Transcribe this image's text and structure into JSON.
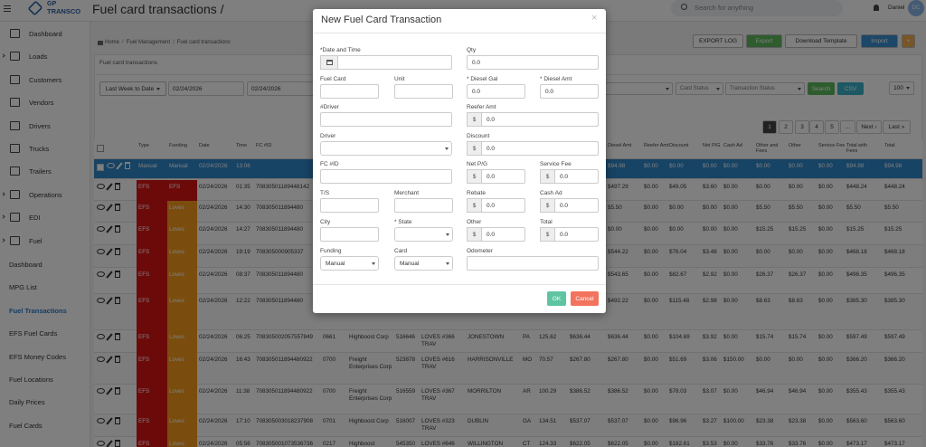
{
  "header": {
    "logo_top": "GP",
    "logo_bottom": "TRANSCO",
    "title": "Fuel card transactions /",
    "search_placeholder": "Search for anything",
    "user": "Daniel",
    "avatar": "DC"
  },
  "sidebar": {
    "items": [
      {
        "label": "Dashboard"
      },
      {
        "label": "Loads",
        "expandable": true
      },
      {
        "label": "Customers"
      },
      {
        "label": "Vendors"
      },
      {
        "label": "Drivers"
      },
      {
        "label": "Trucks"
      },
      {
        "label": "Trailers"
      },
      {
        "label": "Operations",
        "expandable": true
      },
      {
        "label": "EDI",
        "expandable": true
      },
      {
        "label": "Fuel",
        "expandable": true
      }
    ],
    "fuel_menu": [
      {
        "label": "Dashboard"
      },
      {
        "label": "MPG List"
      },
      {
        "label": "Fuel Transactions",
        "active": true
      },
      {
        "label": "EFS Fuel Cards"
      },
      {
        "label": "EFS Money Codes"
      },
      {
        "label": "Fuel Locations"
      },
      {
        "label": "Daily Prices"
      },
      {
        "label": "Fuel Cards"
      }
    ]
  },
  "breadcrumb": [
    "Home",
    "Fuel Management",
    "Fuel card transactions"
  ],
  "breadcrumb_separator": "/",
  "toolbar": [
    "EXPORT LOG",
    "Export",
    "Download Template",
    "Import",
    "+"
  ],
  "panel_title": "Fuel card transactions",
  "filters": {
    "range": "Last Week to Date",
    "from": "02/24/2026",
    "to": "02/24/2026",
    "funding": "Funding",
    "card_status": "Card Status",
    "transaction_status": "Transaction Status",
    "search": "Search",
    "csv": "CSV",
    "page_size": "100"
  },
  "pagination": [
    "1",
    "2",
    "3",
    "4",
    "5",
    "...",
    "Next ›",
    "Last »"
  ],
  "table": {
    "tag_colors": {
      "EFS": "#d81414",
      "Loves": "#f59a1c"
    },
    "headers": [
      "Type",
      "Funding",
      "Date",
      "Time",
      "FC #ID",
      null,
      null,
      null,
      null,
      null,
      null,
      null,
      null,
      "Diesel Amt",
      "Reefer Amt",
      "Discount",
      "Net P/G",
      "Cash Ad",
      "Other and Fees",
      "Other",
      "Service Fee",
      "Total with Fees",
      "Total"
    ],
    "rows": [
      [
        "Manual",
        "Manual",
        "02/24/2026",
        "13:06",
        null,
        null,
        null,
        null,
        null,
        null,
        null,
        null,
        null,
        "$94.98",
        "$0.00",
        "$0.00",
        "$0.00",
        "$0.00",
        "$0.00",
        "$0.00",
        "$0.00",
        "$94.98",
        "$94.98"
      ],
      [
        "EFS",
        "EFS",
        "02/24/2026",
        "01:35",
        "70830501189448142",
        null,
        null,
        null,
        null,
        null,
        null,
        null,
        null,
        "$497.29",
        "$0.00",
        "$49.05",
        "$3.60",
        "$0.00",
        "$0.00",
        "$0.00",
        "$0.00",
        "$448.24",
        "$448.24"
      ],
      [
        "EFS",
        "Loves",
        "02/24/2026",
        "14:30",
        "708305011894480",
        null,
        null,
        null,
        null,
        null,
        null,
        null,
        null,
        "$5.50",
        "$0.00",
        "$0.00",
        "$0.00",
        "$0.00",
        "$5.50",
        "$5.50",
        "$0.00",
        "$5.50",
        "$5.50"
      ],
      [
        "EFS",
        "Loves",
        "02/24/2026",
        "14:27",
        "708305011894480",
        null,
        null,
        null,
        null,
        null,
        null,
        null,
        null,
        "$0.00",
        "$0.00",
        "$0.00",
        "$0.00",
        "$0.00",
        "$15.25",
        "$15.25",
        "$0.00",
        "$15.25",
        "$15.25"
      ],
      [
        "EFS",
        "Loves",
        "02/24/2026",
        "19:19",
        "708305000905337",
        null,
        null,
        null,
        null,
        null,
        null,
        null,
        null,
        "$544.22",
        "$0.00",
        "$76.04",
        "$3.48",
        "$0.00",
        "$0.00",
        "$0.00",
        "$0.00",
        "$468.18",
        "$468.18"
      ],
      [
        "EFS",
        "Loves",
        "02/24/2026",
        "08:37",
        "708305011894480",
        null,
        null,
        null,
        null,
        null,
        null,
        null,
        null,
        "$543.65",
        "$0.00",
        "$82.67",
        "$2.92",
        "$0.00",
        "$26.37",
        "$26.37",
        "$0.00",
        "$496.35",
        "$496.35"
      ],
      [
        "EFS",
        "Loves",
        "02/24/2026",
        "12:22",
        "708305011894480",
        null,
        "Enterprises Corp",
        null,
        "TRAV",
        null,
        null,
        null,
        null,
        "$492.22",
        "$0.00",
        "$115.48",
        "$2.98",
        "$0.00",
        "$8.63",
        "$8.63",
        "$0.00",
        "$385.30",
        "$385.30"
      ],
      [
        "EFS",
        "Loves",
        "02/24/2026",
        "06:25",
        "708305002057557849",
        "0661",
        "Highboost Corp",
        "516646",
        "LOVES #366 TRAV",
        "JONESTOWN",
        "PA",
        "125.62",
        "$636.44",
        "$636.44",
        "$0.00",
        "$104.69",
        "$3.92",
        "$0.00",
        "$15.74",
        "$15.74",
        "$0.00",
        "$597.49",
        "$597.49"
      ],
      [
        "EFS",
        "Loves",
        "02/24/2026",
        "16:43",
        "708305011894480922",
        "0700",
        "Freight Enterprises Corp",
        "523878",
        "LOVES #616 TRAV",
        "HARRISONVILLE",
        "MO",
        "70.57",
        "$267.80",
        "$267.80",
        "$0.00",
        "$51.69",
        "$3.06",
        "$150.00",
        "$0.00",
        "$0.00",
        "$0.00",
        "$366.20",
        "$366.20"
      ],
      [
        "EFS",
        "Loves",
        "02/24/2026",
        "11:38",
        "708305011894480922",
        "0700",
        "Freight Enterprises Corp",
        "516559",
        "LOVES #367 TRAV",
        "MORRILTON",
        "AR",
        "100.29",
        "$386.52",
        "$386.52",
        "$0.00",
        "$78.03",
        "$3.07",
        "$0.00",
        "$46.94",
        "$46.94",
        "$0.00",
        "$355.43",
        "$355.43"
      ],
      [
        "EFS",
        "Loves",
        "02/24/2026",
        "17:10",
        "708305003018237908",
        "0701",
        "Highboost Corp",
        "516007",
        "LOVES #323 TRAV",
        "DUBLIN",
        "GA",
        "134.51",
        "$537.07",
        "$537.07",
        "$0.00",
        "$96.96",
        "$3.27",
        "$100.00",
        "$23.38",
        "$23.38",
        "$0.00",
        "$563.60",
        "$563.60"
      ],
      [
        "EFS",
        "Loves",
        "02/24/2026",
        "05:56",
        "708305001073536736",
        "0217",
        "Highboost",
        "545350",
        "LOVES #646",
        "WILLINGTON",
        "CT",
        "124.33",
        "$622.05",
        "$622.05",
        "$0.00",
        "$182.61",
        "$3.53",
        "$0.00",
        "$33.76",
        "$33.76",
        "$0.00",
        "$473.17",
        "$473.17"
      ]
    ]
  },
  "modal": {
    "title": "New Fuel Card Transaction",
    "close": "×",
    "ok": "OK",
    "cancel": "Cancel",
    "fields": [
      {
        "label": "*Date and Time",
        "kind": "date"
      },
      {
        "label": "Qty",
        "value": "0.0"
      },
      {
        "label": "Fuel Card"
      },
      {
        "label": "Unit"
      },
      {
        "label": "* Diesel Gal",
        "value": "0.0"
      },
      {
        "label": "* Diesel Amt",
        "value": "0.0"
      },
      {
        "label": "#Driver"
      },
      {
        "label": "Reefer Amt",
        "prefix": "$",
        "value": "0.0"
      },
      {
        "label": "Driver",
        "kind": "select"
      },
      {
        "label": "Discount",
        "prefix": "$",
        "value": "0.0"
      },
      {
        "label": "FC #ID"
      },
      {
        "label": "Net P/G",
        "prefix": "$",
        "value": "0.0"
      },
      {
        "label": "Service Fee",
        "prefix": "$",
        "value": "0.0"
      },
      {
        "label": "T/S"
      },
      {
        "label": "Merchant"
      },
      {
        "label": "Rebate",
        "prefix": "$",
        "value": "0.0"
      },
      {
        "label": "Cash Ad",
        "prefix": "$",
        "value": "0.0"
      },
      {
        "label": "City"
      },
      {
        "label": "* State",
        "kind": "select"
      },
      {
        "label": "Other",
        "prefix": "$",
        "value": "0.0"
      },
      {
        "label": "Total",
        "prefix": "$",
        "value": "0.0"
      },
      {
        "label": "Funding",
        "kind": "select",
        "value": "Manual"
      },
      {
        "label": "Card",
        "kind": "select",
        "value": "Manual"
      },
      {
        "label": "Odometer"
      }
    ]
  }
}
